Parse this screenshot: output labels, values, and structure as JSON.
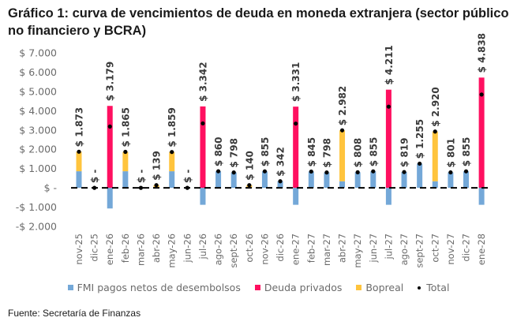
{
  "title": "Gráfico 1: curva de vencimientos de deuda en moneda extranjera (sector público no financiero y BCRA)",
  "source": "Fuente: Secretaría de Finanzas",
  "colors": {
    "fmi": "#74A8D8",
    "deuda_privados": "#FF1060",
    "bopreal": "#FFC43D",
    "total": "#000000",
    "zero_line": "#000000"
  },
  "chart_data": {
    "type": "bar",
    "stacked": true,
    "title": "Gráfico 1: curva de vencimientos de deuda en moneda extranjera (sector público no financiero y BCRA)",
    "xlabel": "",
    "ylabel": "",
    "ylim": [
      -2000,
      7000
    ],
    "yticks": [
      -2000,
      -1000,
      0,
      1000,
      2000,
      3000,
      4000,
      5000,
      6000,
      7000
    ],
    "ytick_labels": [
      "-$ 2.000",
      "-$ 1.000",
      "$ -",
      "$ 1.000",
      "$ 2.000",
      "$ 3.000",
      "$ 4.000",
      "$ 5.000",
      "$ 6.000",
      "$ 7.000"
    ],
    "grid": false,
    "legend_position": "bottom",
    "categories": [
      "nov-25",
      "dic-25",
      "ene-26",
      "feb-26",
      "mar-26",
      "abr-26",
      "may-26",
      "jun-26",
      "jul-26",
      "ago-26",
      "sept-26",
      "oct-26",
      "nov-26",
      "dic-26",
      "ene-27",
      "feb-27",
      "mar-27",
      "abr-27",
      "may-27",
      "jun-27",
      "jul-27",
      "ago-27",
      "sept-27",
      "oct-27",
      "nov-27",
      "dic-27",
      "ene-28"
    ],
    "series": [
      {
        "name": "FMI pagos netos de desembolsos",
        "key": "fmi",
        "values": [
          860,
          0,
          -1070,
          860,
          0,
          0,
          860,
          0,
          -880,
          860,
          798,
          0,
          855,
          342,
          -880,
          845,
          798,
          340,
          808,
          855,
          -880,
          819,
          1255,
          340,
          801,
          855,
          -880
        ]
      },
      {
        "name": "Deuda privados",
        "key": "deuda_privados",
        "values": [
          0,
          0,
          4249,
          0,
          0,
          0,
          0,
          0,
          4222,
          0,
          0,
          0,
          0,
          0,
          4211,
          0,
          0,
          0,
          0,
          0,
          5091,
          0,
          0,
          0,
          0,
          0,
          5718
        ]
      },
      {
        "name": "Bopreal",
        "key": "bopreal",
        "values": [
          1013,
          0,
          0,
          1005,
          0,
          139,
          999,
          0,
          0,
          0,
          0,
          140,
          0,
          0,
          0,
          0,
          0,
          2642,
          0,
          0,
          0,
          0,
          0,
          2580,
          0,
          0,
          0
        ]
      }
    ],
    "total": {
      "name": "Total",
      "values": [
        1873,
        0,
        3179,
        1865,
        0,
        139,
        1859,
        0,
        3342,
        860,
        798,
        140,
        855,
        342,
        3331,
        845,
        798,
        2982,
        808,
        855,
        4211,
        819,
        1255,
        2920,
        801,
        855,
        4838
      ],
      "labels": [
        "$ 1.873",
        "$ -",
        "$ 3.179",
        "$ 1.865",
        "$ -",
        "$ 139",
        "$ 1.859",
        "$ -",
        "$ 3.342",
        "$ 860",
        "$ 798",
        "$ 140",
        "$ 855",
        "$ 342",
        "$ 3.331",
        "$ 845",
        "$ 798",
        "$ 2.982",
        "$ 808",
        "$ 855",
        "$ 4.211",
        "$ 819",
        "$ 1.255",
        "$ 2.920",
        "$ 801",
        "$ 855",
        "$ 4.838"
      ]
    }
  },
  "legend": [
    {
      "label": "FMI pagos netos de desembolsos",
      "key": "fmi",
      "marker": "square"
    },
    {
      "label": "Deuda privados",
      "key": "deuda_privados",
      "marker": "square"
    },
    {
      "label": "Bopreal",
      "key": "bopreal",
      "marker": "square"
    },
    {
      "label": "Total",
      "key": "total",
      "marker": "dot"
    }
  ]
}
